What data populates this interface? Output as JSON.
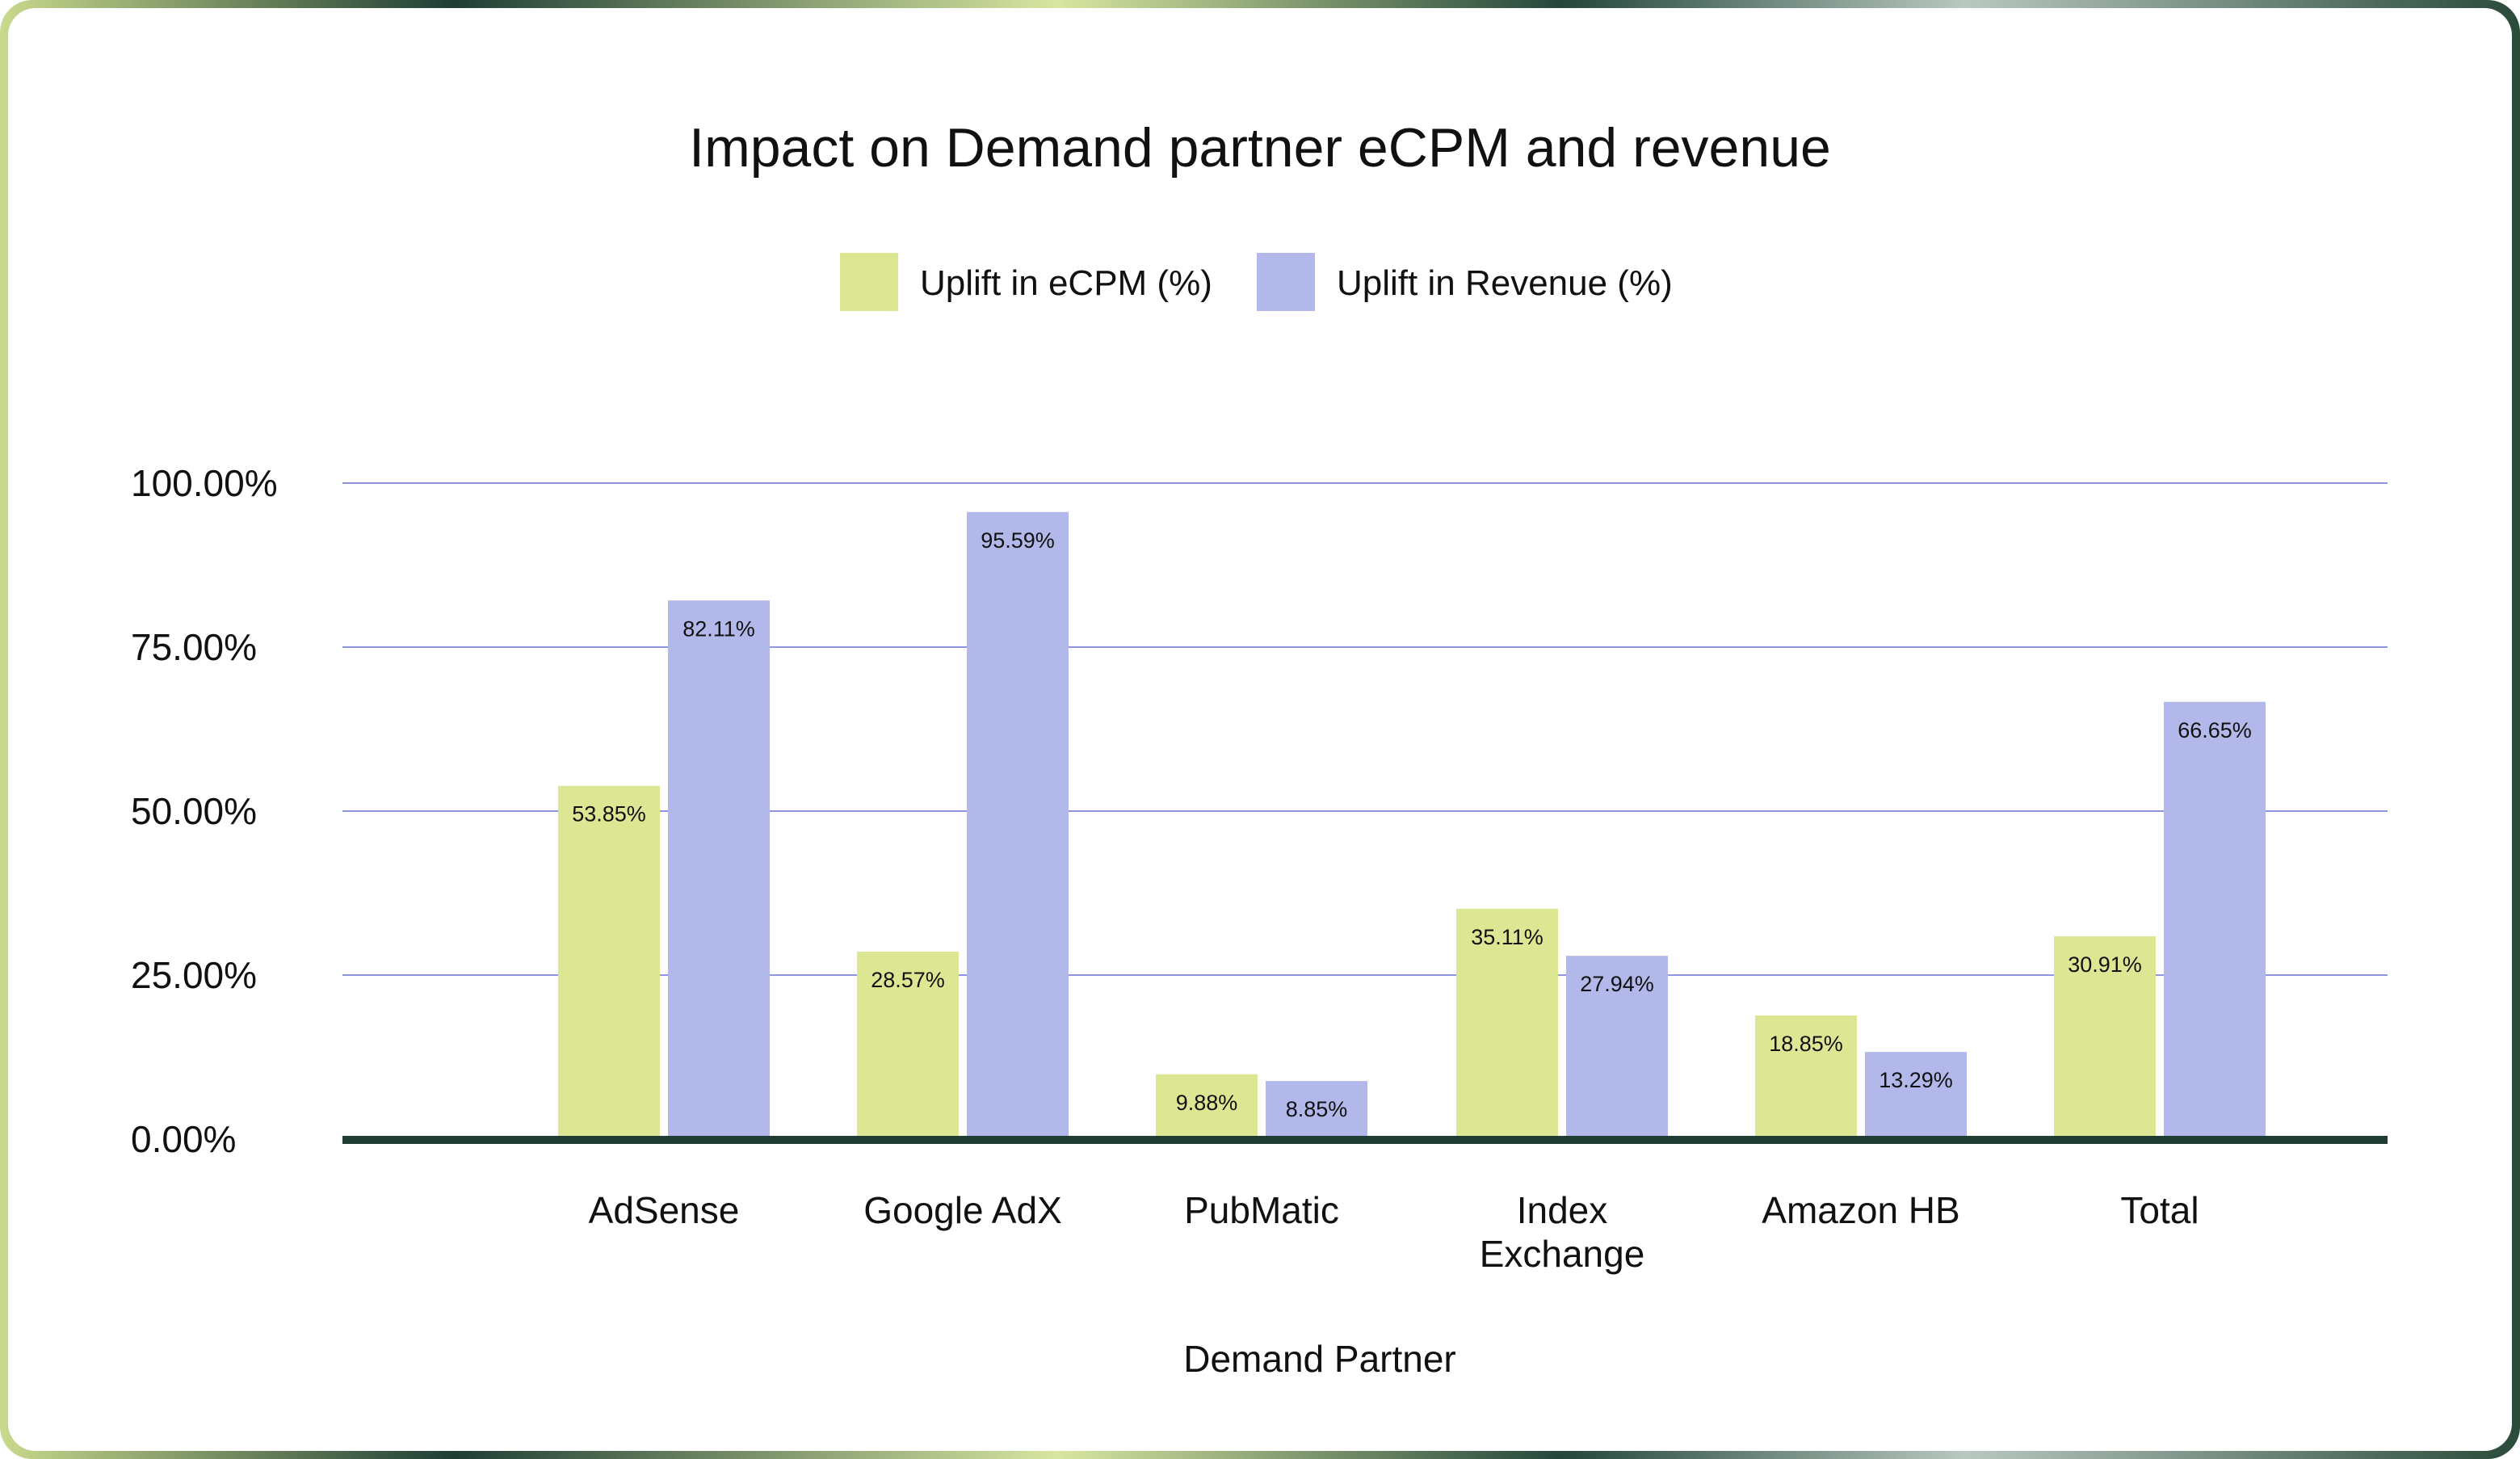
{
  "chart_data": {
    "type": "bar",
    "title": "Impact on Demand partner eCPM and revenue",
    "xlabel": "Demand Partner",
    "ylabel": "",
    "ylim": [
      0,
      100
    ],
    "yticks": [
      {
        "value": 0,
        "label": "0.00%"
      },
      {
        "value": 25,
        "label": "25.00%"
      },
      {
        "value": 50,
        "label": "50.00%"
      },
      {
        "value": 75,
        "label": "75.00%"
      },
      {
        "value": 100,
        "label": "100.00%"
      }
    ],
    "categories": [
      [
        "AdSense"
      ],
      [
        "Google AdX"
      ],
      [
        "PubMatic"
      ],
      [
        "Index",
        "Exchange"
      ],
      [
        "Amazon HB"
      ],
      [
        "Total"
      ]
    ],
    "series": [
      {
        "name": "Uplift in eCPM (%)",
        "color": "#dde693",
        "values": [
          53.85,
          28.57,
          9.88,
          35.11,
          18.85,
          30.91
        ],
        "labels": [
          "53.85%",
          "28.57%",
          "9.88%",
          "35.11%",
          "18.85%",
          "30.91%"
        ]
      },
      {
        "name": "Uplift in Revenue (%)",
        "color": "#b3b8ea",
        "values": [
          82.11,
          95.59,
          8.85,
          27.94,
          13.29,
          66.65
        ],
        "labels": [
          "82.11%",
          "95.59%",
          "8.85%",
          "27.94%",
          "13.29%",
          "66.65%"
        ]
      }
    ],
    "grid": true,
    "legend": "top-center",
    "gridline_color": "#8f94e0",
    "baseline_color": "#1f3d33"
  }
}
